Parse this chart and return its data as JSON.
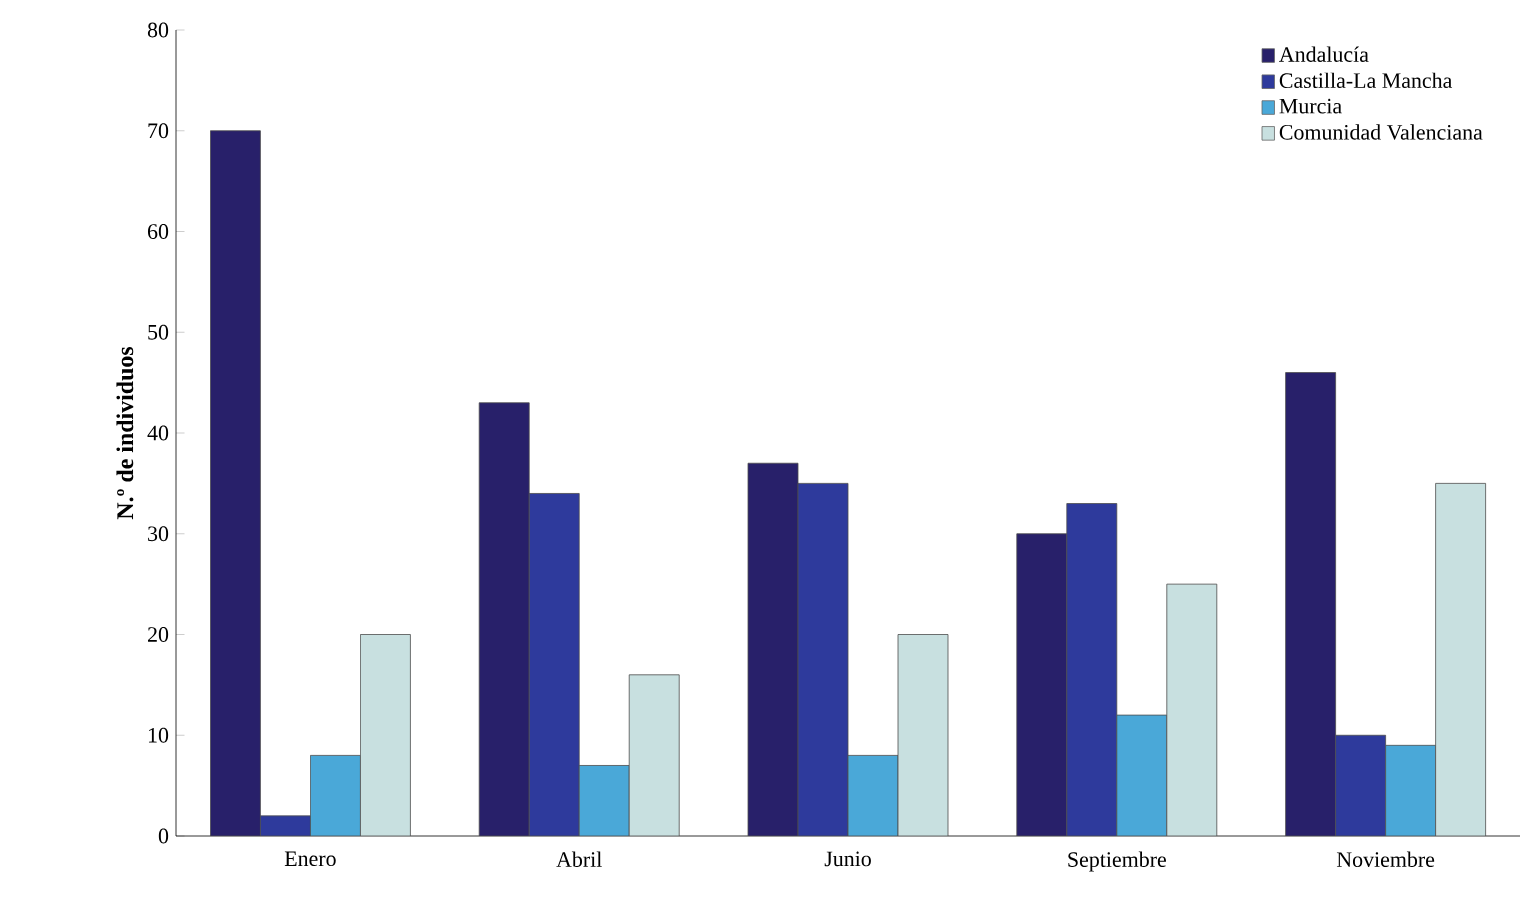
{
  "chart_data": {
    "type": "bar",
    "ylabel": "N.º de individuos",
    "categories": [
      "Enero",
      "Abril",
      "Junio",
      "Septiembre",
      "Noviembre"
    ],
    "series": [
      {
        "name": "Andalucía",
        "color": "#28206a",
        "values": [
          70,
          43,
          37,
          30,
          46
        ]
      },
      {
        "name": "Castilla-La Mancha",
        "color": "#2e3a9c",
        "values": [
          2,
          34,
          35,
          33,
          10
        ]
      },
      {
        "name": "Murcia",
        "color": "#4aa8d8",
        "values": [
          8,
          7,
          8,
          12,
          9
        ]
      },
      {
        "name": "Comunidad Valenciana",
        "color": "#c8e0e0",
        "values": [
          20,
          16,
          20,
          25,
          35
        ]
      }
    ],
    "ylim": [
      0,
      80
    ],
    "yticks": [
      0,
      10,
      20,
      30,
      40,
      50,
      60,
      70,
      80
    ],
    "grid": false,
    "legend": "top right"
  }
}
